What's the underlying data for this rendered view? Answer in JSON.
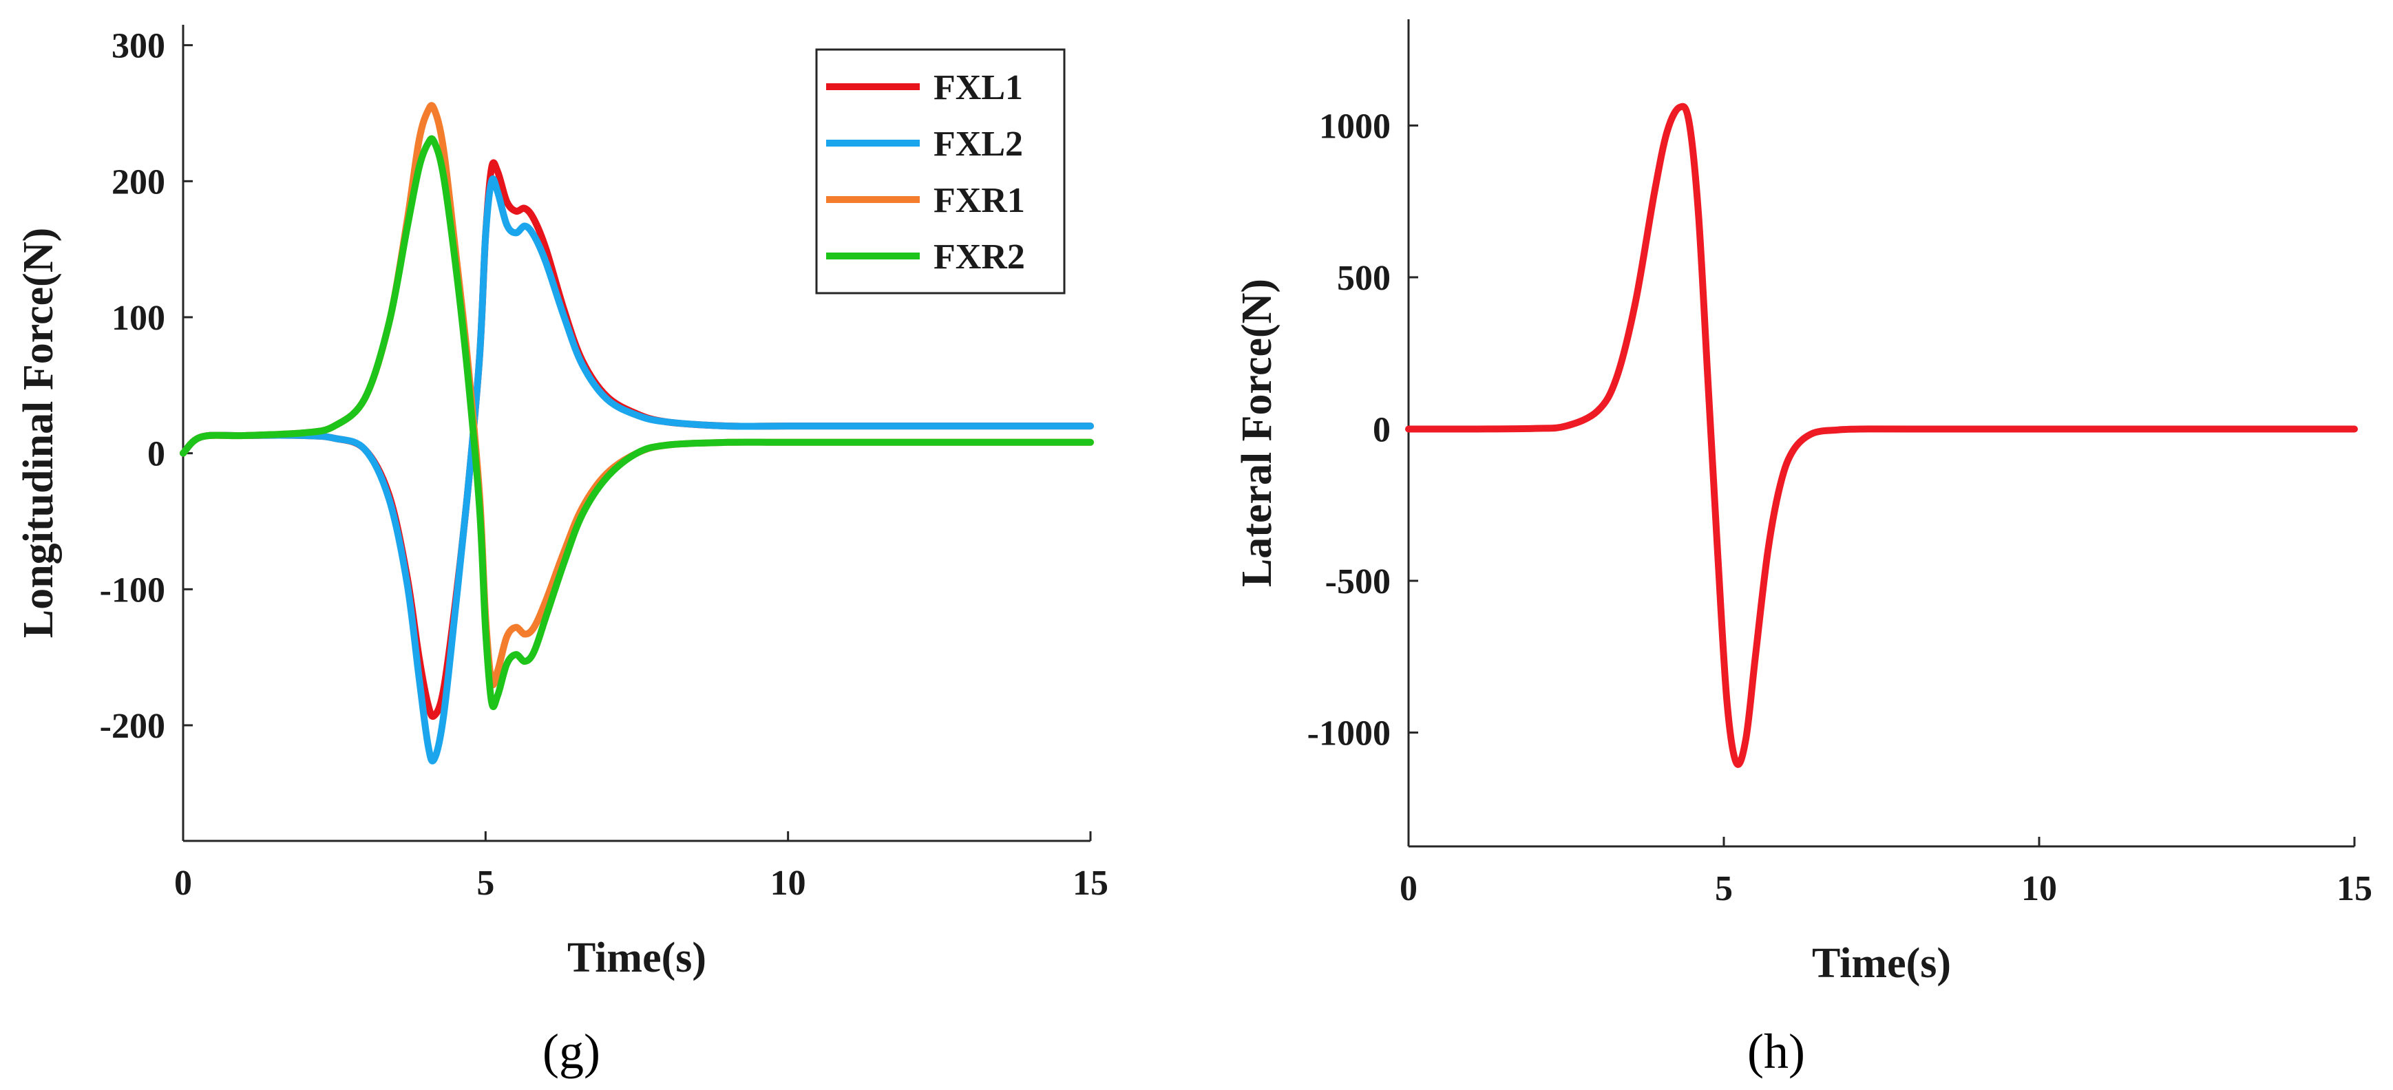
{
  "chart_data": [
    {
      "type": "line",
      "panel_label": "(g)",
      "xlabel": "Time(s)",
      "ylabel": "Longitudinal Force(N)",
      "xlim": [
        0,
        15
      ],
      "ylim": [
        -285,
        315
      ],
      "xticks": [
        0,
        5,
        10,
        15
      ],
      "yticks": [
        -200,
        -100,
        0,
        100,
        200,
        300
      ],
      "grid": false,
      "legend_position": "top-right",
      "series": [
        {
          "name": "FXL1",
          "color": "#e8141b",
          "x": [
            0,
            0.3,
            1.0,
            2.0,
            2.5,
            3.0,
            3.4,
            3.7,
            3.9,
            4.05,
            4.15,
            4.3,
            4.5,
            4.7,
            4.9,
            5.0,
            5.1,
            5.2,
            5.35,
            5.5,
            5.65,
            5.8,
            6.0,
            6.3,
            6.6,
            7.0,
            7.5,
            8.0,
            9.0,
            10.0,
            12.0,
            15.0
          ],
          "y": [
            0,
            12,
            13,
            13,
            11,
            3,
            -30,
            -90,
            -150,
            -185,
            -193,
            -175,
            -110,
            -30,
            70,
            160,
            210,
            207,
            185,
            178,
            180,
            172,
            150,
            105,
            68,
            42,
            29,
            23,
            20,
            20,
            20,
            20
          ]
        },
        {
          "name": "FXL2",
          "color": "#1aa5ec",
          "x": [
            0,
            0.3,
            1.0,
            2.0,
            2.5,
            3.0,
            3.4,
            3.7,
            3.9,
            4.05,
            4.15,
            4.3,
            4.5,
            4.7,
            4.9,
            5.0,
            5.1,
            5.2,
            5.35,
            5.5,
            5.65,
            5.8,
            6.0,
            6.3,
            6.6,
            7.0,
            7.5,
            8.0,
            9.0,
            10.0,
            12.0,
            15.0
          ],
          "y": [
            0,
            12,
            13,
            13,
            11,
            3,
            -33,
            -95,
            -165,
            -215,
            -225,
            -195,
            -115,
            -30,
            70,
            160,
            200,
            192,
            168,
            162,
            167,
            160,
            140,
            100,
            65,
            40,
            28,
            23,
            20,
            20,
            20,
            20
          ]
        },
        {
          "name": "FXR1",
          "color": "#f47c2d",
          "x": [
            0,
            0.3,
            1.0,
            2.0,
            2.5,
            3.0,
            3.4,
            3.7,
            3.9,
            4.05,
            4.15,
            4.3,
            4.5,
            4.7,
            4.9,
            5.0,
            5.1,
            5.2,
            5.35,
            5.5,
            5.65,
            5.8,
            6.0,
            6.3,
            6.6,
            7.0,
            7.5,
            8.0,
            9.0,
            10.0,
            12.0,
            15.0
          ],
          "y": [
            0,
            12,
            13,
            15,
            20,
            40,
            95,
            170,
            230,
            252,
            253,
            225,
            150,
            70,
            -30,
            -120,
            -168,
            -160,
            -135,
            -128,
            -133,
            -128,
            -108,
            -72,
            -40,
            -15,
            0,
            6,
            8,
            8,
            8,
            8
          ]
        },
        {
          "name": "FXR2",
          "color": "#1fc41b",
          "x": [
            0,
            0.3,
            1.0,
            2.0,
            2.5,
            3.0,
            3.4,
            3.7,
            3.9,
            4.05,
            4.15,
            4.3,
            4.5,
            4.7,
            4.9,
            5.0,
            5.1,
            5.2,
            5.35,
            5.5,
            5.65,
            5.8,
            6.0,
            6.3,
            6.6,
            7.0,
            7.5,
            8.0,
            9.0,
            10.0,
            12.0,
            15.0
          ],
          "y": [
            0,
            12,
            13,
            15,
            20,
            40,
            95,
            165,
            210,
            228,
            229,
            205,
            140,
            60,
            -40,
            -130,
            -183,
            -178,
            -155,
            -148,
            -153,
            -146,
            -120,
            -80,
            -45,
            -18,
            0,
            6,
            8,
            8,
            8,
            8
          ]
        }
      ]
    },
    {
      "type": "line",
      "panel_label": "(h)",
      "xlabel": "Time(s)",
      "ylabel": "Lateral Force(N)",
      "xlim": [
        0,
        15
      ],
      "ylim": [
        -1375,
        1350
      ],
      "xticks": [
        0,
        5,
        10,
        15
      ],
      "yticks": [
        -1000,
        -500,
        0,
        500,
        1000
      ],
      "grid": false,
      "series": [
        {
          "name": "",
          "color": "#ee1b24",
          "x": [
            0,
            1.0,
            2.0,
            2.5,
            3.0,
            3.3,
            3.6,
            3.9,
            4.1,
            4.3,
            4.45,
            4.6,
            4.75,
            4.9,
            5.05,
            5.2,
            5.35,
            5.5,
            5.7,
            5.9,
            6.1,
            6.4,
            6.8,
            7.2,
            8.0,
            10.0,
            15.0
          ],
          "y": [
            0,
            0,
            2,
            10,
            60,
            170,
            420,
            780,
            980,
            1060,
            1010,
            700,
            150,
            -400,
            -900,
            -1100,
            -1020,
            -750,
            -400,
            -180,
            -70,
            -15,
            -3,
            0,
            0,
            0,
            0
          ]
        }
      ]
    }
  ]
}
